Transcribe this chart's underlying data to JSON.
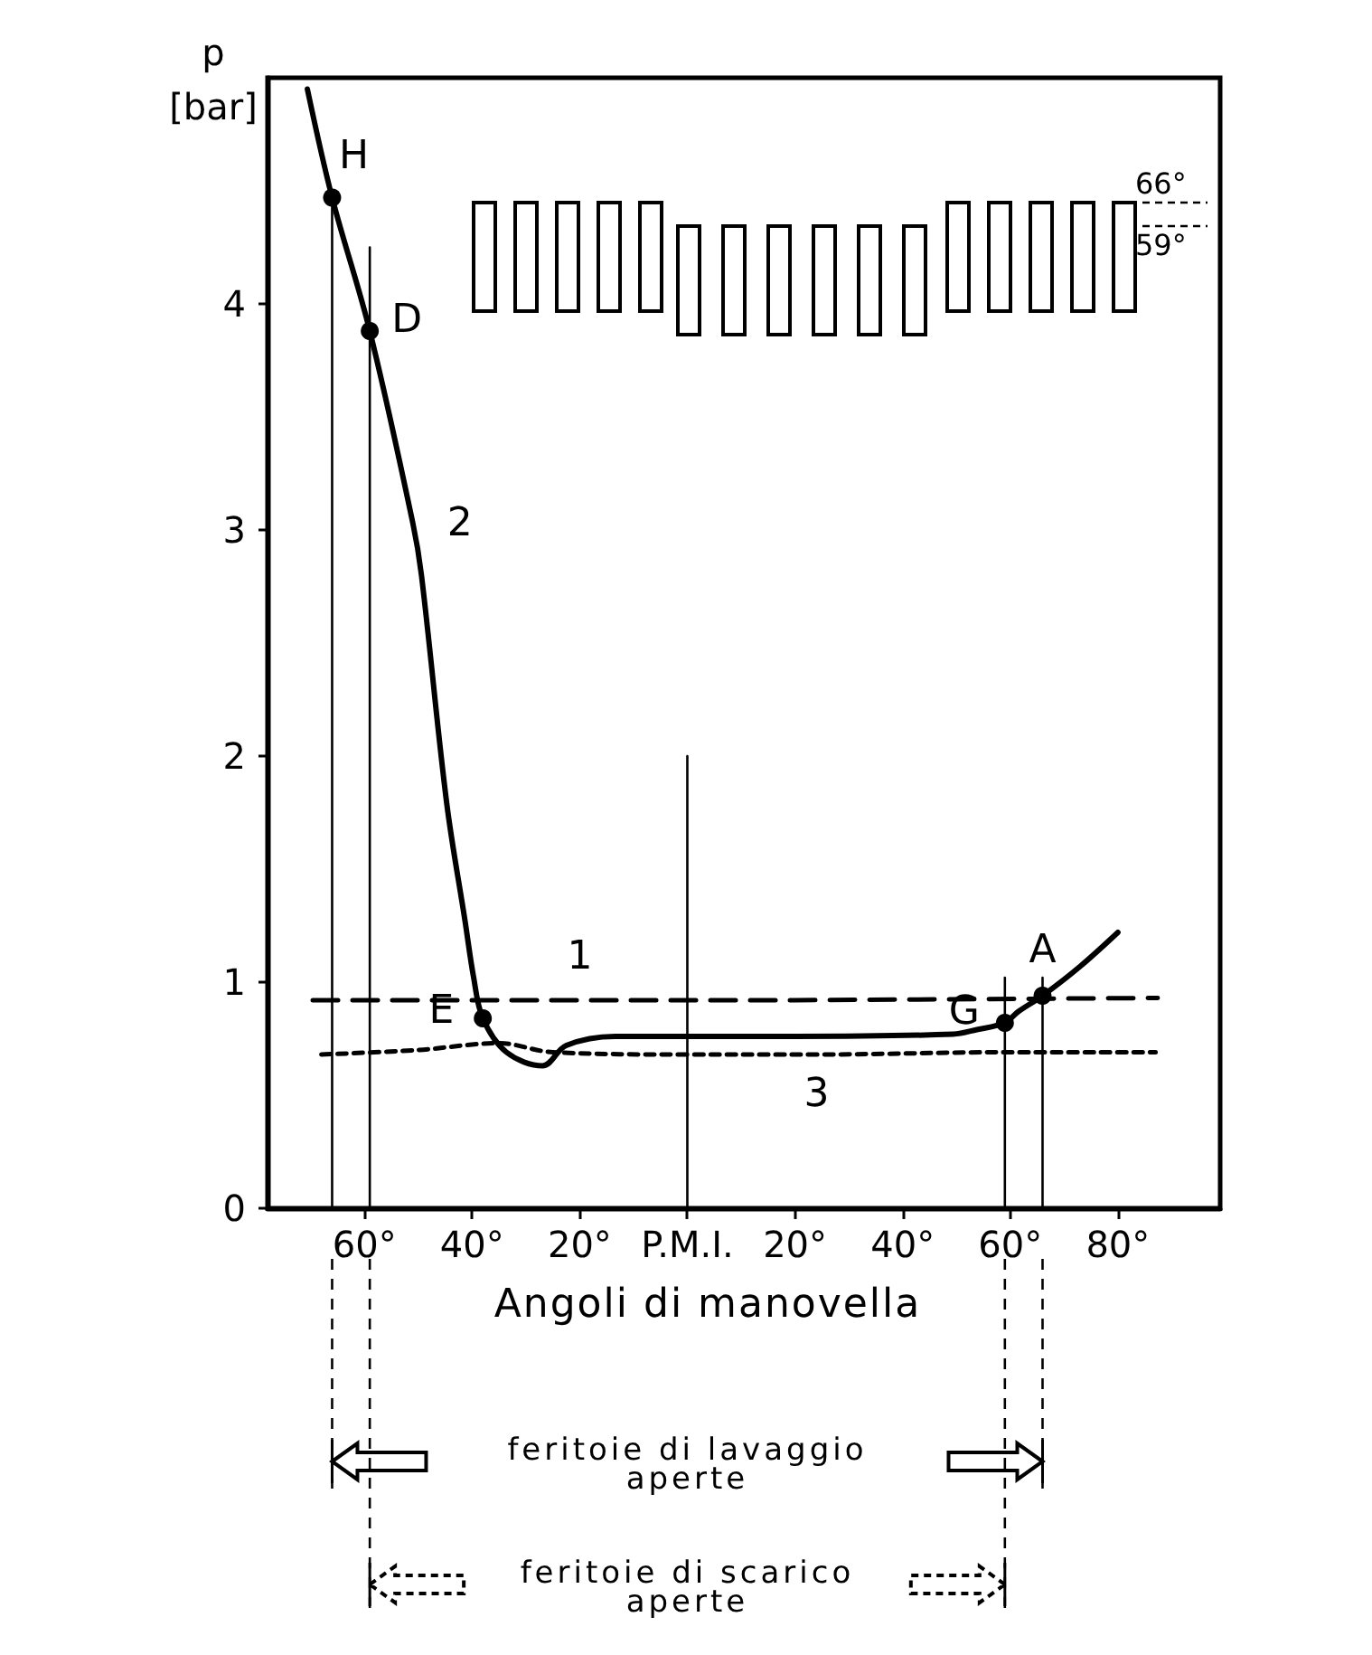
{
  "chart_data": {
    "type": "line",
    "xlabel": "Angoli di manovella",
    "ylabel": "p\n[bar]",
    "xlim": [
      -78,
      99
    ],
    "xticks": [
      {
        "value": -60,
        "label": "60°"
      },
      {
        "value": -40,
        "label": "40°"
      },
      {
        "value": -20,
        "label": "20°"
      },
      {
        "value": 0,
        "label": "P.M.I."
      },
      {
        "value": 20,
        "label": "20°"
      },
      {
        "value": 40,
        "label": "40°"
      },
      {
        "value": 60,
        "label": "60°"
      },
      {
        "value": 80,
        "label": "80°"
      }
    ],
    "ylim": [
      0,
      5
    ],
    "yticks": [
      0,
      1,
      2,
      3,
      4
    ],
    "grid": false,
    "legend": false,
    "marker": "none",
    "series": [
      {
        "name": "1",
        "color": "#000000",
        "line_style": "dashed",
        "x": [
          -69.6,
          -20,
          20,
          87.4
        ],
        "values": [
          0.92,
          0.92,
          0.92,
          0.93
        ]
      },
      {
        "name": "2",
        "color": "#000000",
        "line_style": "solid",
        "x": [
          -70.6,
          -66,
          -59,
          -51,
          -49.4,
          -44.7,
          -41.3,
          -39.7,
          -38,
          -33.6,
          -26.9,
          -22.5,
          -13.4,
          0,
          20,
          49.4,
          53.8,
          59,
          61.5,
          66,
          73,
          80
        ],
        "values": [
          4.95,
          4.47,
          3.88,
          3.03,
          2.8,
          1.79,
          1.27,
          1.02,
          0.84,
          0.69,
          0.63,
          0.72,
          0.76,
          0.76,
          0.76,
          0.77,
          0.79,
          0.82,
          0.87,
          0.94,
          1.07,
          1.22
        ]
      },
      {
        "name": "3",
        "color": "#000000",
        "line_style": "dotted",
        "x": [
          -68,
          -50,
          -35,
          -25,
          0,
          24,
          59,
          87
        ],
        "values": [
          0.68,
          0.7,
          0.73,
          0.69,
          0.68,
          0.68,
          0.69,
          0.69
        ]
      },
      {
        "color": "#000000",
        "line_style": "solid",
        "x": [
          -66,
          -66
        ],
        "values": [
          0,
          4.47
        ]
      },
      {
        "color": "#000000",
        "line_style": "solid",
        "x": [
          -59,
          -59
        ],
        "values": [
          0,
          4.25
        ]
      },
      {
        "color": "#000000",
        "line_style": "solid",
        "x": [
          0,
          0
        ],
        "values": [
          0,
          2
        ]
      },
      {
        "color": "#000000",
        "line_style": "solid",
        "x": [
          59,
          59
        ],
        "values": [
          0,
          1.02
        ]
      },
      {
        "color": "#000000",
        "line_style": "solid",
        "x": [
          66,
          66
        ],
        "values": [
          0,
          1.02
        ]
      }
    ],
    "annotations": [
      {
        "text": "H",
        "x": -66,
        "y": 4.47
      },
      {
        "text": "D",
        "x": -59,
        "y": 3.88
      },
      {
        "text": "E",
        "x": -38,
        "y": 0.84
      },
      {
        "text": "G",
        "x": 59,
        "y": 0.82
      },
      {
        "text": "A",
        "x": 66,
        "y": 0.94
      },
      "66°",
      "59°",
      "feritoie di lavaggio\naperte",
      "feritoie di scarico\naperte"
    ]
  }
}
